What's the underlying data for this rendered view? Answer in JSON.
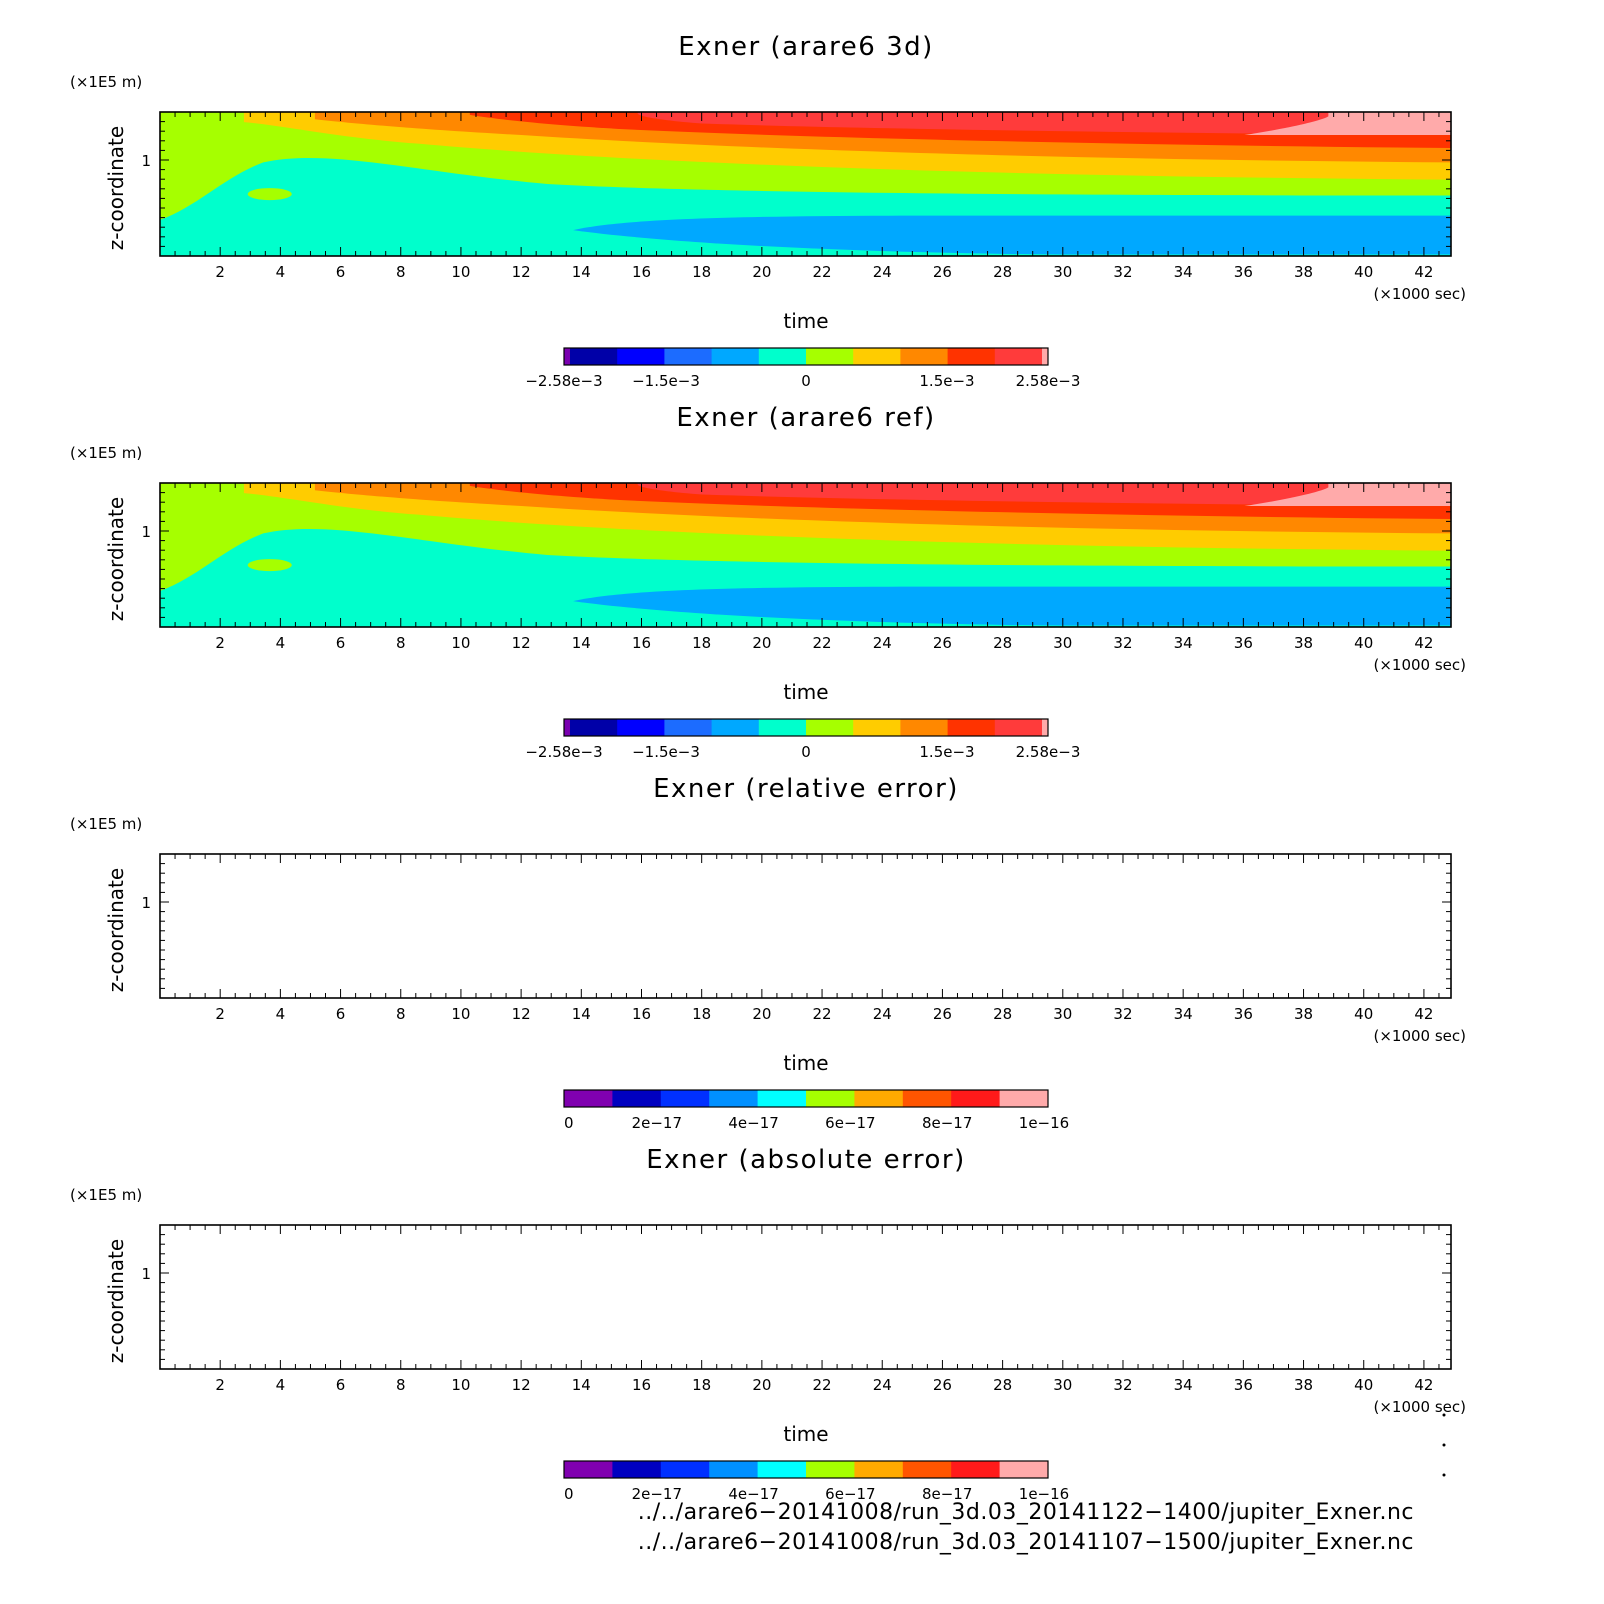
{
  "chart_data": [
    {
      "type": "heatmap",
      "title": "Exner (arare6 3d)",
      "xlabel": "time",
      "x_unit": "(×1000 sec)",
      "ylabel": "z-coordinate",
      "y_unit": "(×1E5 m)",
      "xlim": [
        0,
        42.9
      ],
      "ylim": [
        0,
        1.5
      ],
      "x_ticks": [
        "2",
        "4",
        "6",
        "8",
        "10",
        "12",
        "14",
        "16",
        "18",
        "20",
        "22",
        "24",
        "26",
        "28",
        "30",
        "32",
        "34",
        "36",
        "38",
        "40",
        "42"
      ],
      "y_ticks": [
        "1"
      ],
      "colorbar": {
        "type": "diverging",
        "colors": [
          "#7a00b0",
          "#0000a8",
          "#0000ff",
          "#1c6cff",
          "#00a8ff",
          "#00ffcc",
          "#a6ff00",
          "#ffcc00",
          "#ff8800",
          "#ff3300",
          "#ff3b3b",
          "#ffaaaa"
        ],
        "tick_labels": [
          "−2.58e−3",
          "−1.5e−3",
          "0",
          "1.5e−3",
          "2.58e−3"
        ],
        "range": [
          -0.00258,
          0.00258
        ]
      }
    },
    {
      "type": "heatmap",
      "title": "Exner (arare6 ref)",
      "xlabel": "time",
      "x_unit": "(×1000 sec)",
      "ylabel": "z-coordinate",
      "y_unit": "(×1E5 m)",
      "xlim": [
        0,
        42.9
      ],
      "ylim": [
        0,
        1.5
      ],
      "x_ticks": [
        "2",
        "4",
        "6",
        "8",
        "10",
        "12",
        "14",
        "16",
        "18",
        "20",
        "22",
        "24",
        "26",
        "28",
        "30",
        "32",
        "34",
        "36",
        "38",
        "40",
        "42"
      ],
      "y_ticks": [
        "1"
      ],
      "colorbar": {
        "type": "diverging",
        "colors": [
          "#7a00b0",
          "#0000a8",
          "#0000ff",
          "#1c6cff",
          "#00a8ff",
          "#00ffcc",
          "#a6ff00",
          "#ffcc00",
          "#ff8800",
          "#ff3300",
          "#ff3b3b",
          "#ffaaaa"
        ],
        "tick_labels": [
          "−2.58e−3",
          "−1.5e−3",
          "0",
          "1.5e−3",
          "2.58e−3"
        ],
        "range": [
          -0.00258,
          0.00258
        ]
      }
    },
    {
      "type": "heatmap",
      "title": "Exner (relative error)",
      "xlabel": "time",
      "x_unit": "(×1000 sec)",
      "ylabel": "z-coordinate",
      "y_unit": "(×1E5 m)",
      "xlim": [
        0,
        42.9
      ],
      "ylim": [
        0,
        1.5
      ],
      "x_ticks": [
        "2",
        "4",
        "6",
        "8",
        "10",
        "12",
        "14",
        "16",
        "18",
        "20",
        "22",
        "24",
        "26",
        "28",
        "30",
        "32",
        "34",
        "36",
        "38",
        "40",
        "42"
      ],
      "y_ticks": [
        "1"
      ],
      "empty": true,
      "colorbar": {
        "type": "sequential",
        "colors": [
          "#8000b0",
          "#0000c0",
          "#0030ff",
          "#0090ff",
          "#00ffff",
          "#a6ff00",
          "#ffaa00",
          "#ff5500",
          "#ff1a1a",
          "#ffaaaa"
        ],
        "tick_labels": [
          "0",
          "2e−17",
          "4e−17",
          "6e−17",
          "8e−17",
          "1e−16"
        ],
        "range": [
          0,
          1e-16
        ]
      }
    },
    {
      "type": "heatmap",
      "title": "Exner (absolute error)",
      "xlabel": "time",
      "x_unit": "(×1000 sec)",
      "ylabel": "z-coordinate",
      "y_unit": "(×1E5 m)",
      "xlim": [
        0,
        42.9
      ],
      "ylim": [
        0,
        1.5
      ],
      "x_ticks": [
        "2",
        "4",
        "6",
        "8",
        "10",
        "12",
        "14",
        "16",
        "18",
        "20",
        "22",
        "24",
        "26",
        "28",
        "30",
        "32",
        "34",
        "36",
        "38",
        "40",
        "42"
      ],
      "y_ticks": [
        "1"
      ],
      "empty": true,
      "colorbar": {
        "type": "sequential",
        "colors": [
          "#8000b0",
          "#0000c0",
          "#0030ff",
          "#0090ff",
          "#00ffff",
          "#a6ff00",
          "#ffaa00",
          "#ff5500",
          "#ff1a1a",
          "#ffaaaa"
        ],
        "tick_labels": [
          "0",
          "2e−17",
          "4e−17",
          "6e−17",
          "8e−17",
          "1e−16"
        ],
        "range": [
          0,
          1e-16
        ]
      }
    }
  ],
  "footer": {
    "path_3d": "../../arare6−20141008/run_3d.03_20141122−1400/jupiter_Exner.nc",
    "path_ref": "../../arare6−20141008/run_3d.03_20141107−1500/jupiter_Exner.nc"
  }
}
